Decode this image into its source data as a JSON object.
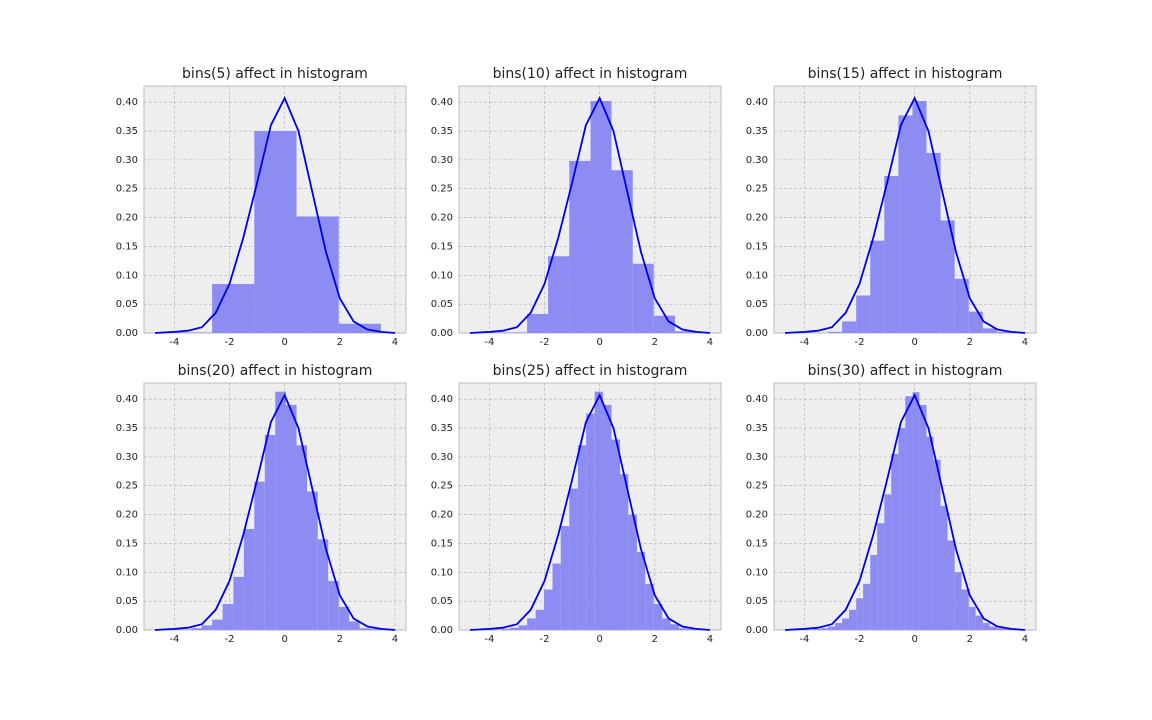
{
  "chart_data": [
    {
      "type": "histogram",
      "title": "bins(5) affect in histogram",
      "color": "#8c8cf2",
      "bins": [
        -4.16,
        -2.63,
        -1.1,
        0.43,
        1.96,
        3.49
      ],
      "values": [
        0.001,
        0.085,
        0.35,
        0.202,
        0.016
      ],
      "kde": {
        "color": "#0000e6",
        "x": [
          -4.7,
          -4,
          -3.5,
          -3,
          -2.5,
          -2,
          -1.5,
          -1,
          -0.5,
          0,
          0.5,
          1,
          1.5,
          2,
          2.5,
          3,
          3.5,
          4
        ],
        "values": [
          0,
          0.002,
          0.004,
          0.01,
          0.035,
          0.085,
          0.165,
          0.26,
          0.36,
          0.407,
          0.35,
          0.245,
          0.14,
          0.06,
          0.02,
          0.006,
          0.002,
          0
        ]
      },
      "xlim": [
        -5.1,
        4.4
      ],
      "ylim": [
        0,
        0.428
      ],
      "xticks": [
        -4,
        -2,
        0,
        2,
        4
      ],
      "yticks": [
        {
          "value": 0,
          "label": "0.00"
        },
        {
          "value": 0.05,
          "label": "0.05"
        },
        {
          "value": 0.1,
          "label": "0.10"
        },
        {
          "value": 0.15,
          "label": "0.15"
        },
        {
          "value": 0.2,
          "label": "0.20"
        },
        {
          "value": 0.25,
          "label": "0.25"
        },
        {
          "value": 0.3,
          "label": "0.30"
        },
        {
          "value": 0.35,
          "label": "0.35"
        },
        {
          "value": 0.4,
          "label": "0.40"
        }
      ],
      "grid": true
    },
    {
      "type": "histogram",
      "title": "bins(10) affect in histogram",
      "color": "#8c8cf2",
      "bins": [
        -4.16,
        -3.4,
        -2.63,
        -1.87,
        -1.1,
        -0.33,
        0.43,
        1.2,
        1.96,
        2.73,
        3.49
      ],
      "values": [
        0.001,
        0.001,
        0.033,
        0.133,
        0.298,
        0.402,
        0.282,
        0.12,
        0.03,
        0.003
      ],
      "kde": {
        "color": "#0000e6",
        "x": [
          -4.7,
          -4,
          -3.5,
          -3,
          -2.5,
          -2,
          -1.5,
          -1,
          -0.5,
          0,
          0.5,
          1,
          1.5,
          2,
          2.5,
          3,
          3.5,
          4
        ],
        "values": [
          0,
          0.002,
          0.004,
          0.01,
          0.035,
          0.085,
          0.165,
          0.26,
          0.36,
          0.407,
          0.35,
          0.245,
          0.14,
          0.06,
          0.02,
          0.006,
          0.002,
          0
        ]
      },
      "xlim": [
        -5.1,
        4.4
      ],
      "ylim": [
        0,
        0.428
      ],
      "xticks": [
        -4,
        -2,
        0,
        2,
        4
      ],
      "yticks": [
        {
          "value": 0,
          "label": "0.00"
        },
        {
          "value": 0.05,
          "label": "0.05"
        },
        {
          "value": 0.1,
          "label": "0.10"
        },
        {
          "value": 0.15,
          "label": "0.15"
        },
        {
          "value": 0.2,
          "label": "0.20"
        },
        {
          "value": 0.25,
          "label": "0.25"
        },
        {
          "value": 0.3,
          "label": "0.30"
        },
        {
          "value": 0.35,
          "label": "0.35"
        },
        {
          "value": 0.4,
          "label": "0.40"
        }
      ],
      "grid": true
    },
    {
      "type": "histogram",
      "title": "bins(15) affect in histogram",
      "color": "#8c8cf2",
      "bins": [
        -4.16,
        -3.65,
        -3.14,
        -2.63,
        -2.12,
        -1.61,
        -1.1,
        -0.59,
        -0.08,
        0.43,
        0.94,
        1.45,
        1.96,
        2.47,
        2.98,
        3.49
      ],
      "values": [
        0.001,
        0,
        0.002,
        0.02,
        0.065,
        0.16,
        0.272,
        0.377,
        0.402,
        0.312,
        0.195,
        0.094,
        0.037,
        0.008,
        0.002
      ],
      "kde": {
        "color": "#0000e6",
        "x": [
          -4.7,
          -4,
          -3.5,
          -3,
          -2.5,
          -2,
          -1.5,
          -1,
          -0.5,
          0,
          0.5,
          1,
          1.5,
          2,
          2.5,
          3,
          3.5,
          4
        ],
        "values": [
          0,
          0.002,
          0.004,
          0.01,
          0.035,
          0.085,
          0.165,
          0.26,
          0.36,
          0.407,
          0.35,
          0.245,
          0.14,
          0.06,
          0.02,
          0.006,
          0.002,
          0
        ]
      },
      "xlim": [
        -5.1,
        4.4
      ],
      "ylim": [
        0,
        0.428
      ],
      "xticks": [
        -4,
        -2,
        0,
        2,
        4
      ],
      "yticks": [
        {
          "value": 0,
          "label": "0.00"
        },
        {
          "value": 0.05,
          "label": "0.05"
        },
        {
          "value": 0.1,
          "label": "0.10"
        },
        {
          "value": 0.15,
          "label": "0.15"
        },
        {
          "value": 0.2,
          "label": "0.20"
        },
        {
          "value": 0.25,
          "label": "0.25"
        },
        {
          "value": 0.3,
          "label": "0.30"
        },
        {
          "value": 0.35,
          "label": "0.35"
        },
        {
          "value": 0.4,
          "label": "0.40"
        }
      ],
      "grid": true
    },
    {
      "type": "histogram",
      "title": "bins(20) affect in histogram",
      "color": "#8c8cf2",
      "bins": [
        -4.16,
        -3.78,
        -3.39,
        -3.01,
        -2.63,
        -2.25,
        -1.86,
        -1.48,
        -1.1,
        -0.72,
        -0.34,
        0.05,
        0.43,
        0.81,
        1.2,
        1.58,
        1.96,
        2.34,
        2.72,
        3.11,
        3.49
      ],
      "values": [
        0.001,
        0.001,
        0.003,
        0.008,
        0.018,
        0.045,
        0.092,
        0.175,
        0.257,
        0.338,
        0.413,
        0.39,
        0.32,
        0.24,
        0.157,
        0.085,
        0.04,
        0.015,
        0.003,
        0.002
      ],
      "kde": {
        "color": "#0000e6",
        "x": [
          -4.7,
          -4,
          -3.5,
          -3,
          -2.5,
          -2,
          -1.5,
          -1,
          -0.5,
          0,
          0.5,
          1,
          1.5,
          2,
          2.5,
          3,
          3.5,
          4
        ],
        "values": [
          0,
          0.002,
          0.004,
          0.01,
          0.035,
          0.085,
          0.165,
          0.26,
          0.36,
          0.407,
          0.35,
          0.245,
          0.14,
          0.06,
          0.02,
          0.006,
          0.002,
          0
        ]
      },
      "xlim": [
        -5.1,
        4.4
      ],
      "ylim": [
        0,
        0.428
      ],
      "xticks": [
        -4,
        -2,
        0,
        2,
        4
      ],
      "yticks": [
        {
          "value": 0,
          "label": "0.00"
        },
        {
          "value": 0.05,
          "label": "0.05"
        },
        {
          "value": 0.1,
          "label": "0.10"
        },
        {
          "value": 0.15,
          "label": "0.15"
        },
        {
          "value": 0.2,
          "label": "0.20"
        },
        {
          "value": 0.25,
          "label": "0.25"
        },
        {
          "value": 0.3,
          "label": "0.30"
        },
        {
          "value": 0.35,
          "label": "0.35"
        },
        {
          "value": 0.4,
          "label": "0.40"
        }
      ],
      "grid": true
    },
    {
      "type": "histogram",
      "title": "bins(25) affect in histogram",
      "color": "#8c8cf2",
      "bins": [
        -4.16,
        -3.85,
        -3.55,
        -3.24,
        -2.94,
        -2.63,
        -2.32,
        -2.02,
        -1.71,
        -1.41,
        -1.1,
        -0.79,
        -0.49,
        -0.18,
        0.12,
        0.43,
        0.74,
        1.04,
        1.35,
        1.65,
        1.96,
        2.27,
        2.57,
        2.88,
        3.18,
        3.49
      ],
      "values": [
        0.001,
        0.001,
        0.002,
        0.004,
        0.008,
        0.02,
        0.035,
        0.07,
        0.115,
        0.18,
        0.245,
        0.32,
        0.375,
        0.413,
        0.39,
        0.33,
        0.27,
        0.2,
        0.135,
        0.08,
        0.045,
        0.02,
        0.01,
        0.003,
        0.002
      ],
      "kde": {
        "color": "#0000e6",
        "x": [
          -4.7,
          -4,
          -3.5,
          -3,
          -2.5,
          -2,
          -1.5,
          -1,
          -0.5,
          0,
          0.5,
          1,
          1.5,
          2,
          2.5,
          3,
          3.5,
          4
        ],
        "values": [
          0,
          0.002,
          0.004,
          0.01,
          0.035,
          0.085,
          0.165,
          0.26,
          0.36,
          0.407,
          0.35,
          0.245,
          0.14,
          0.06,
          0.02,
          0.006,
          0.002,
          0
        ]
      },
      "xlim": [
        -5.1,
        4.4
      ],
      "ylim": [
        0,
        0.428
      ],
      "xticks": [
        -4,
        -2,
        0,
        2,
        4
      ],
      "yticks": [
        {
          "value": 0,
          "label": "0.00"
        },
        {
          "value": 0.05,
          "label": "0.05"
        },
        {
          "value": 0.1,
          "label": "0.10"
        },
        {
          "value": 0.15,
          "label": "0.15"
        },
        {
          "value": 0.2,
          "label": "0.20"
        },
        {
          "value": 0.25,
          "label": "0.25"
        },
        {
          "value": 0.3,
          "label": "0.30"
        },
        {
          "value": 0.35,
          "label": "0.35"
        },
        {
          "value": 0.4,
          "label": "0.40"
        }
      ],
      "grid": true
    },
    {
      "type": "histogram",
      "title": "bins(30) affect in histogram",
      "color": "#8c8cf2",
      "bins": [
        -4.16,
        -3.91,
        -3.65,
        -3.4,
        -3.14,
        -2.89,
        -2.63,
        -2.38,
        -2.12,
        -1.87,
        -1.61,
        -1.36,
        -1.1,
        -0.85,
        -0.59,
        -0.34,
        -0.08,
        0.17,
        0.43,
        0.68,
        0.94,
        1.19,
        1.45,
        1.7,
        1.96,
        2.21,
        2.47,
        2.72,
        2.98,
        3.23,
        3.49
      ],
      "values": [
        0.001,
        0.001,
        0.002,
        0.003,
        0.006,
        0.012,
        0.02,
        0.035,
        0.055,
        0.08,
        0.13,
        0.185,
        0.235,
        0.305,
        0.35,
        0.405,
        0.412,
        0.39,
        0.335,
        0.295,
        0.215,
        0.155,
        0.1,
        0.07,
        0.04,
        0.025,
        0.012,
        0.006,
        0.003,
        0.002
      ],
      "kde": {
        "color": "#0000e6",
        "x": [
          -4.7,
          -4,
          -3.5,
          -3,
          -2.5,
          -2,
          -1.5,
          -1,
          -0.5,
          0,
          0.5,
          1,
          1.5,
          2,
          2.5,
          3,
          3.5,
          4
        ],
        "values": [
          0,
          0.002,
          0.004,
          0.01,
          0.035,
          0.085,
          0.165,
          0.26,
          0.36,
          0.407,
          0.35,
          0.245,
          0.14,
          0.06,
          0.02,
          0.006,
          0.002,
          0
        ]
      },
      "xlim": [
        -5.1,
        4.4
      ],
      "ylim": [
        0,
        0.428
      ],
      "xticks": [
        -4,
        -2,
        0,
        2,
        4
      ],
      "yticks": [
        {
          "value": 0,
          "label": "0.00"
        },
        {
          "value": 0.05,
          "label": "0.05"
        },
        {
          "value": 0.1,
          "label": "0.10"
        },
        {
          "value": 0.15,
          "label": "0.15"
        },
        {
          "value": 0.2,
          "label": "0.20"
        },
        {
          "value": 0.25,
          "label": "0.25"
        },
        {
          "value": 0.3,
          "label": "0.30"
        },
        {
          "value": 0.35,
          "label": "0.35"
        },
        {
          "value": 0.4,
          "label": "0.40"
        }
      ],
      "grid": true
    }
  ]
}
